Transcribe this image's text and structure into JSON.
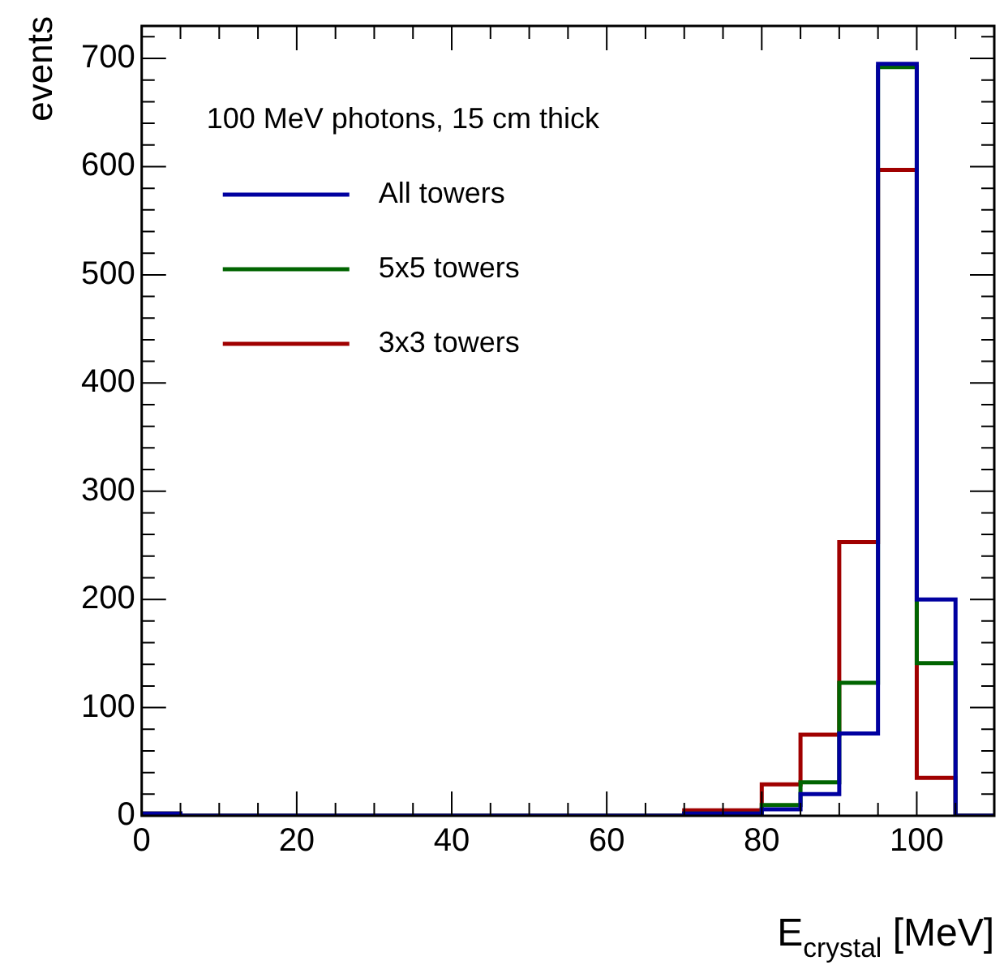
{
  "chart_data": {
    "type": "histogram",
    "xlabel": "E$_{crystal}$ [MeV]",
    "ylabel": "events",
    "legend_title": "100 MeV photons, 15 cm thick",
    "legend": "top left",
    "grid": false,
    "bins": [
      0,
      5,
      10,
      15,
      20,
      25,
      30,
      35,
      40,
      45,
      50,
      55,
      60,
      65,
      70,
      75,
      80,
      85,
      90,
      95,
      100,
      105,
      110
    ],
    "series": [
      {
        "name": "All towers",
        "color": "#0000a0",
        "values": [
          2,
          0,
          0,
          0,
          0,
          0,
          0,
          0,
          0,
          0,
          0,
          0,
          0,
          0,
          2,
          2,
          6,
          20,
          76,
          695,
          200,
          0
        ]
      },
      {
        "name": "5x5 towers",
        "color": "#006400",
        "values": [
          2,
          0,
          0,
          0,
          0,
          0,
          0,
          0,
          0,
          0,
          0,
          0,
          0,
          0,
          2,
          2,
          10,
          31,
          123,
          692,
          141,
          0
        ]
      },
      {
        "name": "3x3 towers",
        "color": "#a00000",
        "values": [
          2,
          0,
          0,
          0,
          0,
          0,
          0,
          0,
          0,
          0,
          0,
          0,
          0,
          0,
          5,
          5,
          29,
          75,
          253,
          597,
          35,
          0
        ]
      }
    ],
    "xlim": [
      0,
      110
    ],
    "ylim": [
      0,
      730
    ],
    "xticks": [
      0,
      {
        "value": 5,
        "label": null
      },
      {
        "value": 10,
        "label": null
      },
      {
        "value": 15,
        "label": null
      },
      20,
      {
        "value": 25,
        "label": null
      },
      {
        "value": 30,
        "label": null
      },
      {
        "value": 35,
        "label": null
      },
      40,
      {
        "value": 45,
        "label": null
      },
      {
        "value": 50,
        "label": null
      },
      {
        "value": 55,
        "label": null
      },
      60,
      {
        "value": 65,
        "label": null
      },
      {
        "value": 70,
        "label": null
      },
      {
        "value": 75,
        "label": null
      },
      80,
      {
        "value": 85,
        "label": null
      },
      {
        "value": 90,
        "label": null
      },
      {
        "value": 95,
        "label": null
      },
      100,
      {
        "value": 105,
        "label": null
      }
    ],
    "yticks": [
      0,
      {
        "value": 20,
        "label": null
      },
      {
        "value": 40,
        "label": null
      },
      {
        "value": 60,
        "label": null
      },
      {
        "value": 80,
        "label": null
      },
      100,
      {
        "value": 120,
        "label": null
      },
      {
        "value": 140,
        "label": null
      },
      {
        "value": 160,
        "label": null
      },
      {
        "value": 180,
        "label": null
      },
      200,
      {
        "value": 220,
        "label": null
      },
      {
        "value": 240,
        "label": null
      },
      {
        "value": 260,
        "label": null
      },
      {
        "value": 280,
        "label": null
      },
      300,
      {
        "value": 320,
        "label": null
      },
      {
        "value": 340,
        "label": null
      },
      {
        "value": 360,
        "label": null
      },
      {
        "value": 380,
        "label": null
      },
      400,
      {
        "value": 420,
        "label": null
      },
      {
        "value": 440,
        "label": null
      },
      {
        "value": 460,
        "label": null
      },
      {
        "value": 480,
        "label": null
      },
      500,
      {
        "value": 520,
        "label": null
      },
      {
        "value": 540,
        "label": null
      },
      {
        "value": 560,
        "label": null
      },
      {
        "value": 580,
        "label": null
      },
      600,
      {
        "value": 620,
        "label": null
      },
      {
        "value": 640,
        "label": null
      },
      {
        "value": 660,
        "label": null
      },
      {
        "value": 680,
        "label": null
      },
      700,
      {
        "value": 720,
        "label": null
      }
    ]
  }
}
